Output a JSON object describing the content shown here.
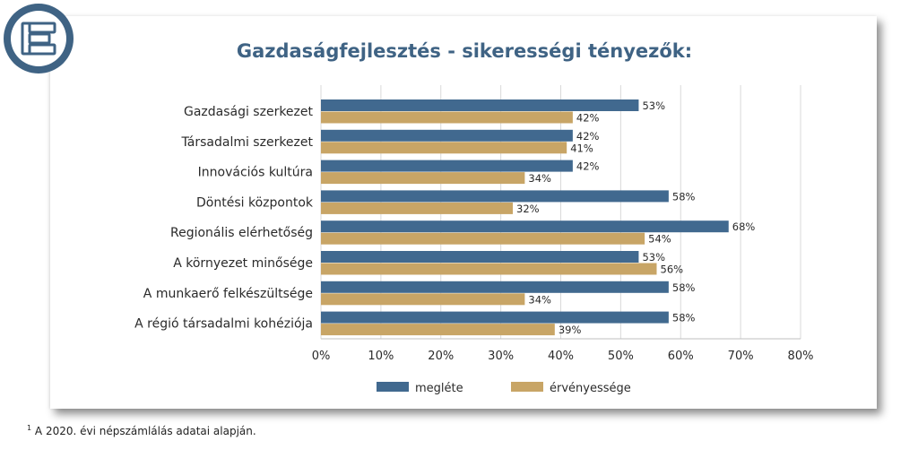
{
  "colors": {
    "series1": "#41698f",
    "series2": "#c8a566",
    "logo_ring": "#3f6384"
  },
  "logo": {
    "icon": "stacked-bars-logo-icon"
  },
  "footnote": {
    "marker": "1",
    "text": "A 2020. évi népszámlálás adatai alapján."
  },
  "chart_data": {
    "type": "bar",
    "orientation": "horizontal",
    "title": "Gazdaságfejlesztés - sikerességi tényezők:",
    "categories": [
      "Gazdasági szerkezet",
      "Társadalmi szerkezet",
      "Innovációs kultúra",
      "Döntési központok",
      "Regionális elérhetőség",
      "A környezet minősége",
      "A munkaerő felkészültsége",
      "A régió társadalmi kohéziója"
    ],
    "series": [
      {
        "name": "megléte",
        "values": [
          53,
          42,
          42,
          58,
          68,
          53,
          58,
          58
        ]
      },
      {
        "name": "érvényessége",
        "values": [
          42,
          41,
          34,
          32,
          54,
          56,
          34,
          39
        ]
      }
    ],
    "value_suffix": "%",
    "xlim": [
      0,
      80
    ],
    "xticks": [
      "0%",
      "10%",
      "20%",
      "30%",
      "40%",
      "50%",
      "60%",
      "70%",
      "80%"
    ],
    "grid": true,
    "legend": "bottom"
  }
}
